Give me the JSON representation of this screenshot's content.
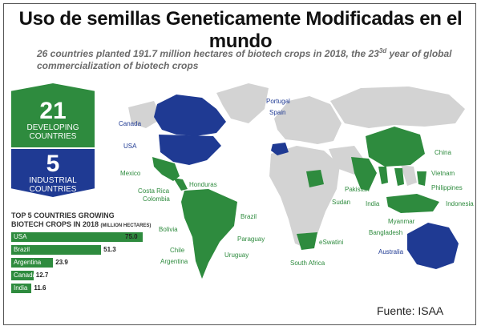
{
  "title": "Uso de semillas Geneticamente Modificadas en el mundo",
  "subtitle": {
    "part1": "26 countries planted 191.7 million hectares of biotech crops in 2018, the 23",
    "sup": "3d",
    "part2": " year of global commercialization of biotech crops"
  },
  "developing": {
    "number": "21",
    "label_line1": "DEVELOPING",
    "label_line2": "COUNTRIES"
  },
  "industrial": {
    "number": "5",
    "label_line1": "INDUSTRIAL",
    "label_line2": "COUNTRIES"
  },
  "top5": {
    "title_line1": "TOP 5 COUNTRIES GROWING",
    "title_line2": "BIOTECH CROPS IN 2018",
    "unit": "(MILLION HECTARES)",
    "max": 75.0,
    "items": [
      {
        "country": "USA",
        "value": 75.0,
        "value_label": "75.0"
      },
      {
        "country": "Brazil",
        "value": 51.3,
        "value_label": "51.3"
      },
      {
        "country": "Argentina",
        "value": 23.9,
        "value_label": "23.9"
      },
      {
        "country": "Canada",
        "value": 12.7,
        "value_label": "12.7"
      },
      {
        "country": "India",
        "value": 11.6,
        "value_label": "11.6"
      }
    ]
  },
  "colors": {
    "developing": "#2e8b3e",
    "industrial": "#1f3a93",
    "land": "#d3d3d3"
  },
  "map_labels": {
    "portugal": "Portugal",
    "spain": "Spain",
    "canada": "Canada",
    "usa": "USA",
    "mexico": "Mexico",
    "honduras": "Honduras",
    "costa_rica": "Costa Rica",
    "colombia": "Colombia",
    "bolivia": "Bolivia",
    "chile": "Chile",
    "argentina": "Argentina",
    "brazil": "Brazil",
    "paraguay": "Paraguay",
    "uruguay": "Uruguay",
    "sudan": "Sudan",
    "eswatini": "eSwatini",
    "south_africa": "South Africa",
    "pakistan": "Pakistan",
    "india": "India",
    "china": "China",
    "vietnam": "Vietnam",
    "philippines": "Philippines",
    "indonesia": "Indonesia",
    "myanmar": "Myanmar",
    "bangladesh": "Bangladesh",
    "australia": "Australia"
  },
  "source": "Fuente: ISAA"
}
